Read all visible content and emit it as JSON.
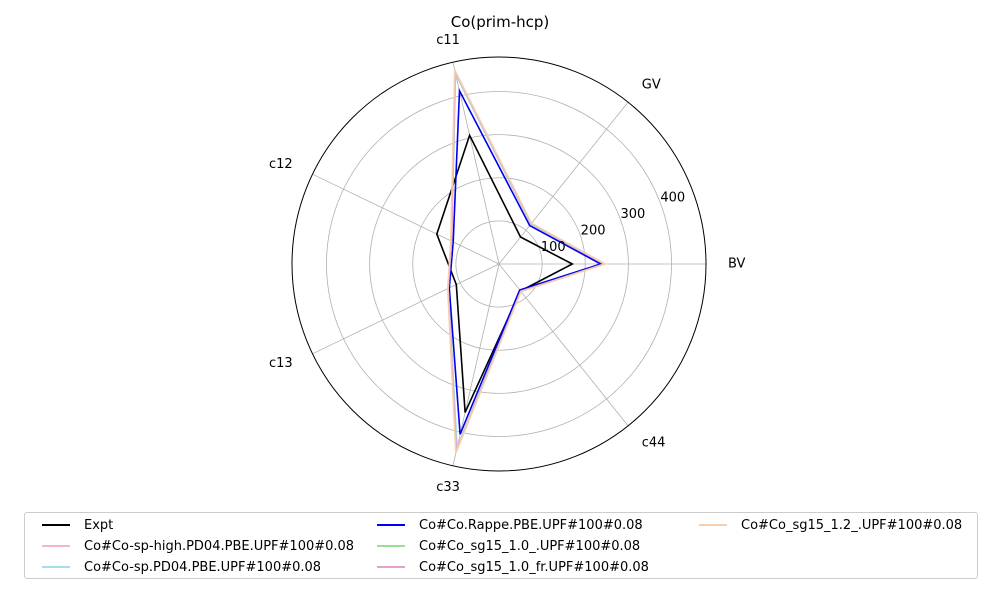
{
  "chart_data": {
    "type": "radar",
    "title": "Co(prim-hcp)",
    "axes": [
      "BV",
      "GV",
      "c11",
      "c12",
      "c13",
      "c33",
      "c44"
    ],
    "radial_range": [
      0,
      480
    ],
    "radial_ticks": [
      100,
      200,
      300,
      400
    ],
    "radial_tick_labels": [
      "100",
      "200",
      "300",
      "400"
    ],
    "grid": true,
    "legend_position": "bottom",
    "series": [
      {
        "name": "Expt",
        "color": "#000000",
        "values": [
          170,
          80,
          306,
          160,
          110,
          353,
          80
        ]
      },
      {
        "name": "Co#Co-sp-high.PD04.PBE.UPF#100#0.08",
        "color": "#f4b6c2",
        "values": [
          240,
          118,
          455,
          123,
          130,
          440,
          80
        ]
      },
      {
        "name": "Co#Co-sp.PD04.PBE.UPF#100#0.08",
        "color": "#a8dcea",
        "values": [
          240,
          118,
          452,
          122,
          130,
          437,
          80
        ]
      },
      {
        "name": "Co#Co.Rappe.PBE.UPF#100#0.08",
        "color": "#0000ee",
        "values": [
          236,
          114,
          412,
          118,
          128,
          405,
          77
        ]
      },
      {
        "name": "Co#Co_sg15_1.0_.UPF#100#0.08",
        "color": "#98e098",
        "values": [
          244,
          120,
          458,
          122,
          131,
          445,
          81
        ]
      },
      {
        "name": "Co#Co_sg15_1.0_fr.UPF#100#0.08",
        "color": "#e6a0d2",
        "values": [
          244,
          120,
          458,
          122,
          131,
          445,
          81
        ]
      },
      {
        "name": "Co#Co_sg15_1.2_.UPF#100#0.08",
        "color": "#f7cfae",
        "values": [
          246,
          121,
          462,
          124,
          132,
          450,
          82
        ]
      }
    ]
  }
}
